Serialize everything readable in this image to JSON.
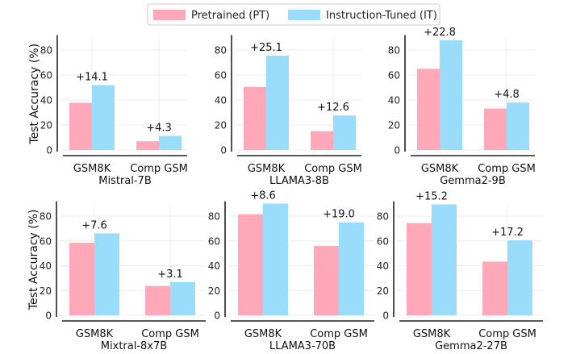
{
  "chart_data": {
    "type": "bar",
    "ylabel": "Test Accuracy (%)",
    "ylim": [
      0,
      90
    ],
    "yticks": [
      0,
      20,
      40,
      60,
      80
    ],
    "grid": true,
    "legend": {
      "placement": "top-center",
      "entries": [
        "Pretrained (PT)",
        "Instruction-Tuned (IT)"
      ]
    },
    "colors": {
      "pt": "#ffa8ba",
      "it": "#99dcfb"
    },
    "categories": [
      "GSM8K",
      "Comp GSM"
    ],
    "panels": [
      {
        "title": "Mistral-7B",
        "pt": [
          37.8,
          7.0
        ],
        "it": [
          51.9,
          11.3
        ],
        "gain_labels": [
          "+14.1",
          "+4.3"
        ]
      },
      {
        "title": "LLAMA3-8B",
        "pt": [
          50.4,
          15.0
        ],
        "it": [
          75.5,
          27.6
        ],
        "gain_labels": [
          "+25.1",
          "+12.6"
        ]
      },
      {
        "title": "Gemma2-9B",
        "pt": [
          65.0,
          33.2
        ],
        "it": [
          87.8,
          38.0
        ],
        "gain_labels": [
          "+22.8",
          "+4.8"
        ]
      },
      {
        "title": "Mixtral-8x7B",
        "pt": [
          58.5,
          23.7
        ],
        "it": [
          66.1,
          26.8
        ],
        "gain_labels": [
          "+7.6",
          "+3.1"
        ]
      },
      {
        "title": "LLAMA3-70B",
        "pt": [
          81.5,
          56.0
        ],
        "it": [
          90.1,
          75.0
        ],
        "gain_labels": [
          "+8.6",
          "+19.0"
        ]
      },
      {
        "title": "Gemma2-27B",
        "pt": [
          74.3,
          43.3
        ],
        "it": [
          89.5,
          60.5
        ],
        "gain_labels": [
          "+15.2",
          "+17.2"
        ]
      }
    ]
  }
}
